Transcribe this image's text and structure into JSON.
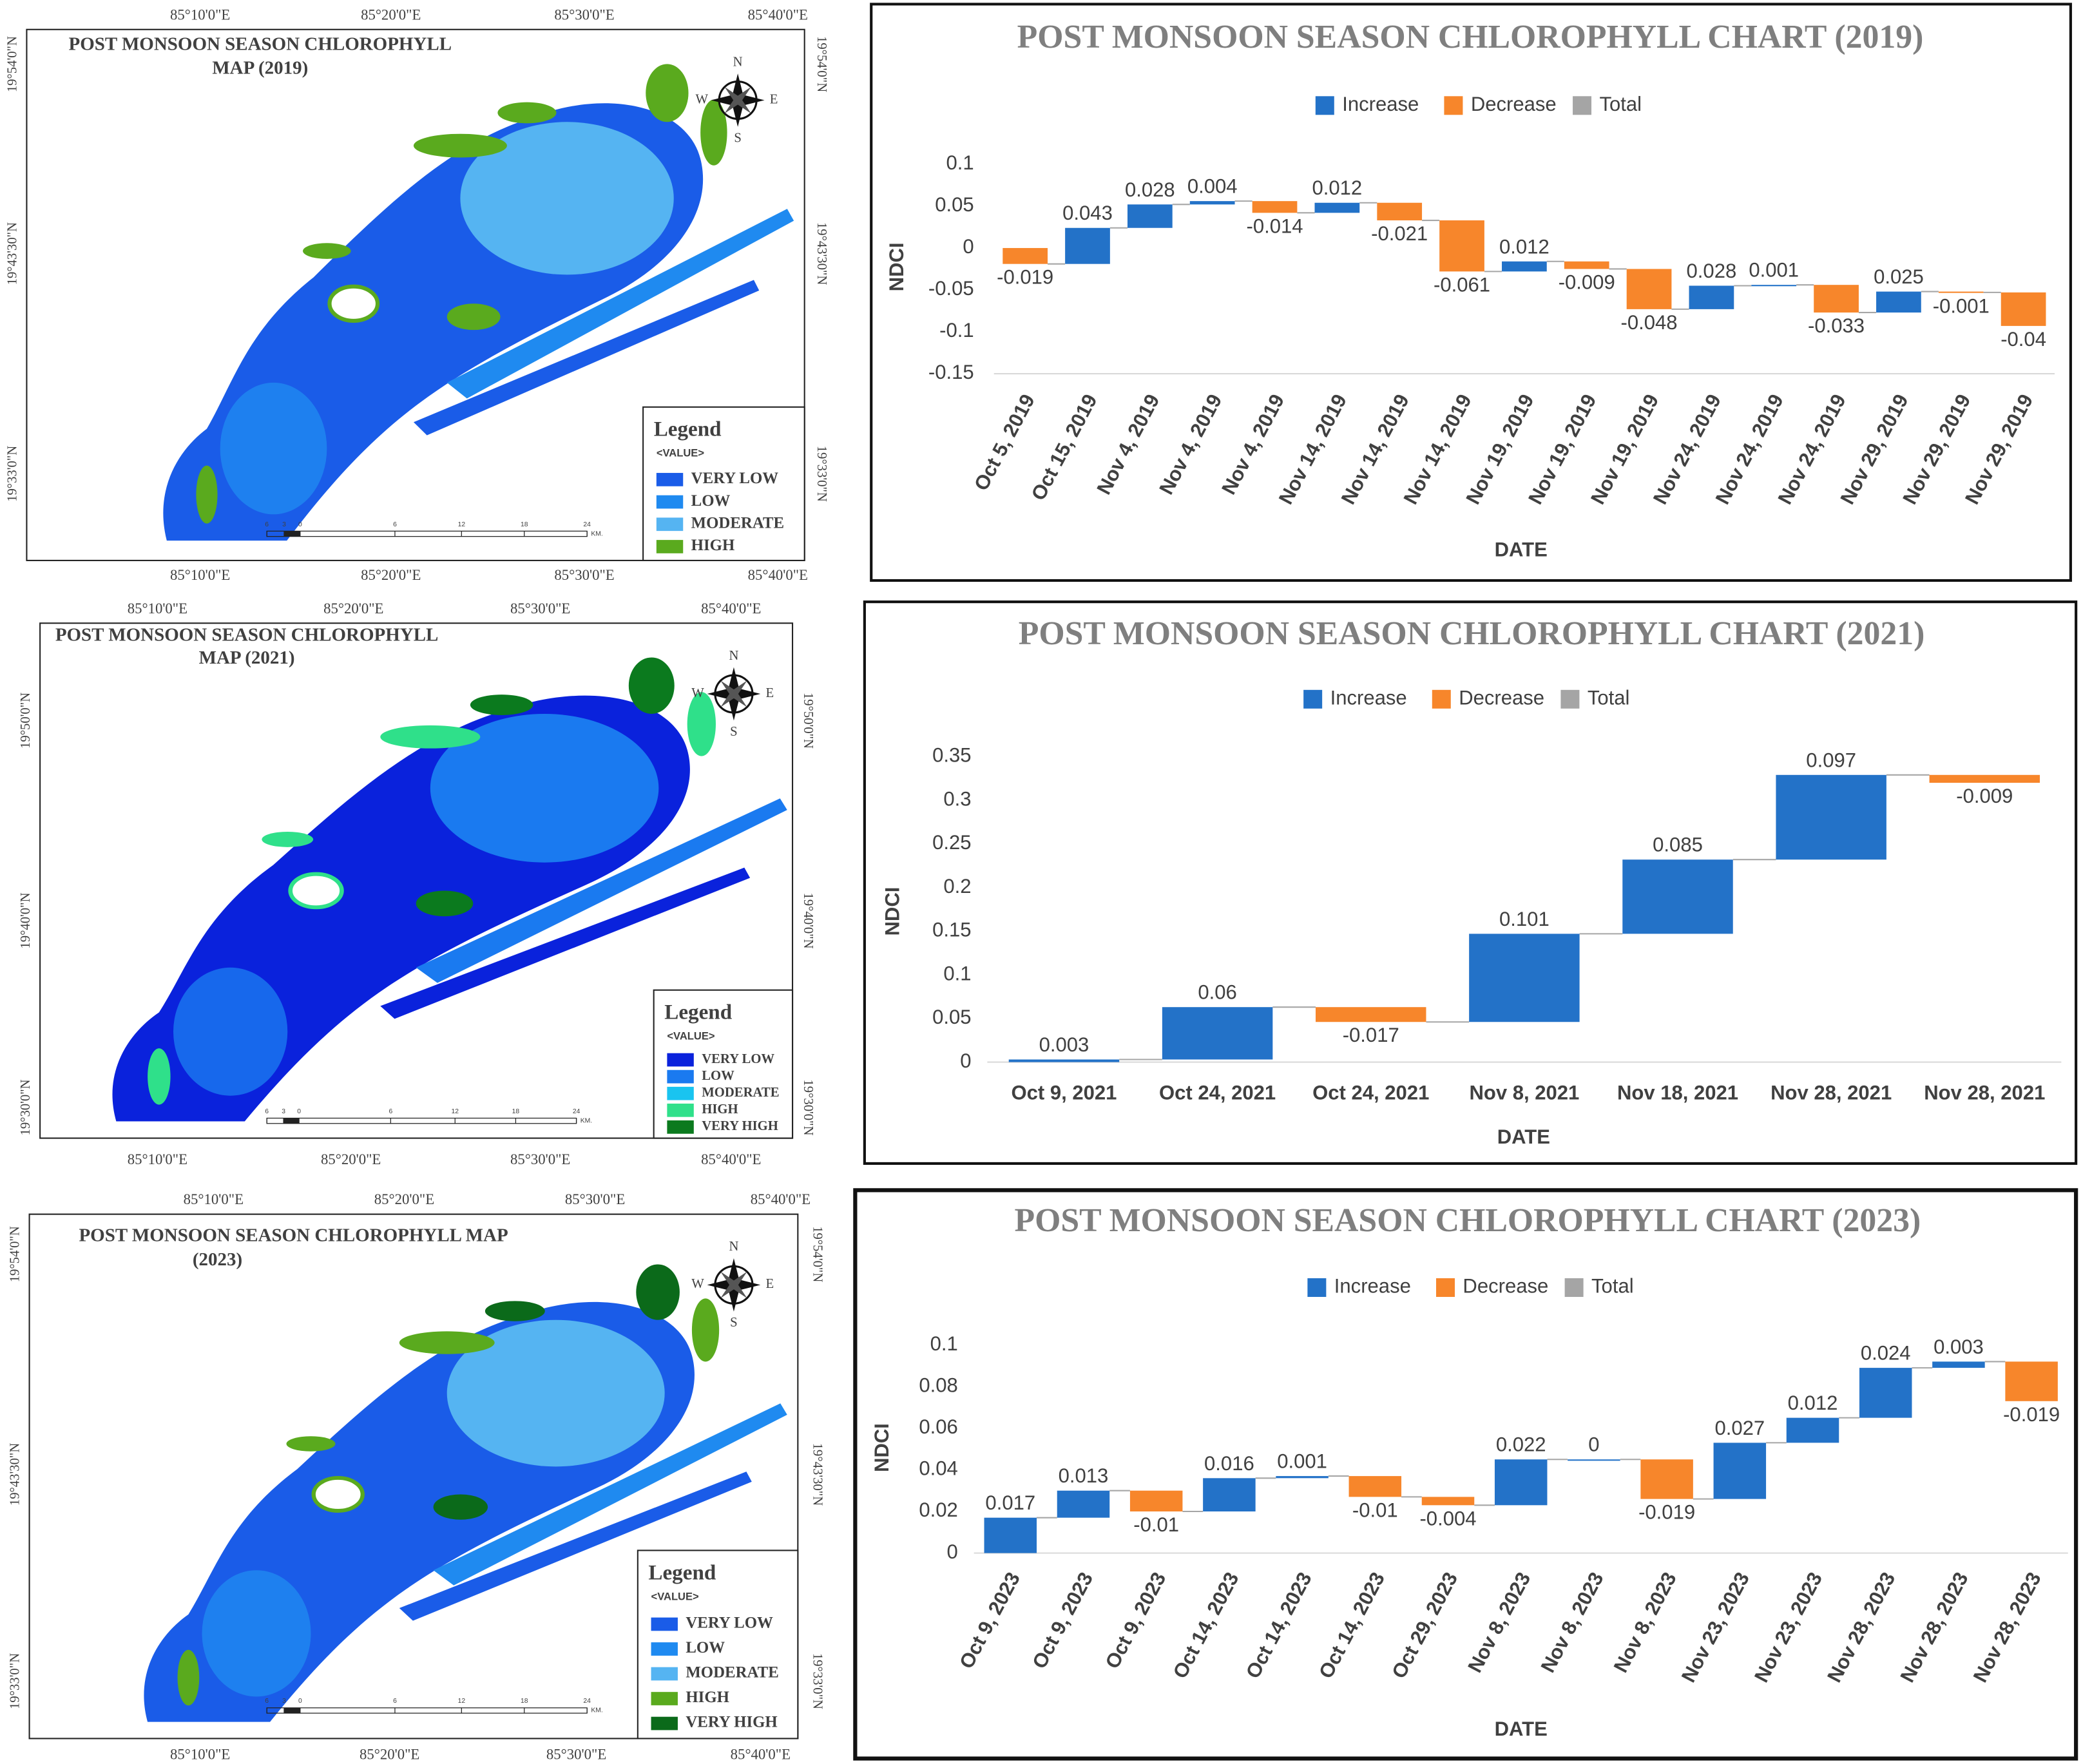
{
  "maps": [
    {
      "title": [
        "POST MONSOON SEASON CHLOROPHYLL",
        "MAP  (2019)"
      ],
      "lon_labels": [
        "85°10'0\"E",
        "85°20'0\"E",
        "85°30'0\"E",
        "85°40'0\"E"
      ],
      "lat_labels": [
        "19°54'0\"N",
        "19°43'30\"N",
        "19°33'0\"N"
      ],
      "compass": [
        "N",
        "E",
        "S",
        "W"
      ],
      "legend_title": "Legend",
      "legend_subtitle": "<VALUE>",
      "legend": [
        {
          "label": "VERY LOW",
          "color": "#1a5ce8"
        },
        {
          "label": "LOW",
          "color": "#1f8af0"
        },
        {
          "label": "MODERATE",
          "color": "#55b4f2"
        },
        {
          "label": "HIGH",
          "color": "#5aaa1e"
        }
      ],
      "scale": [
        "6",
        "3",
        "0",
        "6",
        "12",
        "18",
        "24"
      ],
      "scale_unit": "KM."
    },
    {
      "title": [
        "POST MONSOON SEASON CHLOROPHYLL",
        "MAP (2021)"
      ],
      "lon_labels": [
        "85°10'0\"E",
        "85°20'0\"E",
        "85°30'0\"E",
        "85°40'0\"E"
      ],
      "lat_labels": [
        "19°50'0\"N",
        "19°40'0\"N",
        "19°30'0\"N"
      ],
      "compass": [
        "N",
        "E",
        "S",
        "W"
      ],
      "legend_title": "Legend",
      "legend_subtitle": "<VALUE>",
      "legend": [
        {
          "label": "VERY LOW",
          "color": "#0a22dc"
        },
        {
          "label": "LOW",
          "color": "#1a7af0"
        },
        {
          "label": "MODERATE",
          "color": "#19c4f0"
        },
        {
          "label": "HIGH",
          "color": "#2fe08a"
        },
        {
          "label": "VERY HIGH",
          "color": "#0b7a1e"
        }
      ],
      "scale": [
        "6",
        "3",
        "0",
        "6",
        "12",
        "18",
        "24"
      ],
      "scale_unit": "KM."
    },
    {
      "title": [
        "POST MONSOON SEASON CHLOROPHYLL MAP",
        "(2023)"
      ],
      "lon_labels": [
        "85°10'0\"E",
        "85°20'0\"E",
        "85°30'0\"E",
        "85°40'0\"E"
      ],
      "lat_labels": [
        "19°54'0\"N",
        "19°43'30\"N",
        "19°33'0\"N"
      ],
      "compass": [
        "N",
        "E",
        "S",
        "W"
      ],
      "legend_title": "Legend",
      "legend_subtitle": "<VALUE>",
      "legend": [
        {
          "label": "VERY LOW",
          "color": "#1a5ce8"
        },
        {
          "label": "LOW",
          "color": "#1f8af0"
        },
        {
          "label": "MODERATE",
          "color": "#55b4f2"
        },
        {
          "label": "HIGH",
          "color": "#5aaa1e"
        },
        {
          "label": "VERY HIGH",
          "color": "#0b6a1a"
        }
      ],
      "scale": [
        "6",
        "3",
        "0",
        "6",
        "12",
        "18",
        "24"
      ],
      "scale_unit": "KM."
    }
  ],
  "chart_data": [
    {
      "type": "waterfall",
      "title": "POST MONSOON SEASON CHLOROPHYLL CHART (2019)",
      "legend": [
        {
          "name": "Increase",
          "color": "#2372c8"
        },
        {
          "name": "Decrease",
          "color": "#f7862b"
        },
        {
          "name": "Total",
          "color": "#a5a5a5"
        }
      ],
      "x_label": "DATE",
      "y_label": "NDCI",
      "categories": [
        "Oct 5, 2019",
        "Oct 15, 2019",
        "Nov 4, 2019",
        "Nov 4, 2019",
        "Nov 4, 2019",
        "Nov 14, 2019",
        "Nov 14, 2019",
        "Nov 14, 2019",
        "Nov 19, 2019",
        "Nov 19, 2019",
        "Nov 19, 2019",
        "Nov 24, 2019",
        "Nov 24, 2019",
        "Nov 24, 2019",
        "Nov 29, 2019",
        "Nov 29, 2019",
        "Nov 29, 2019"
      ],
      "values": [
        -0.019,
        0.043,
        0.028,
        0.004,
        -0.014,
        0.012,
        -0.021,
        -0.061,
        0.012,
        -0.009,
        -0.048,
        0.028,
        0.001,
        -0.033,
        0.025,
        -0.001,
        -0.04
      ],
      "ylim": [
        -0.15,
        0.1
      ],
      "yticks": [
        -0.15,
        -0.1,
        -0.05,
        0,
        0.05,
        0.1
      ],
      "grid": false
    },
    {
      "type": "waterfall",
      "title": "POST MONSOON SEASON CHLOROPHYLL CHART (2021)",
      "legend": [
        {
          "name": "Increase",
          "color": "#2372c8"
        },
        {
          "name": "Decrease",
          "color": "#f7862b"
        },
        {
          "name": "Total",
          "color": "#a5a5a5"
        }
      ],
      "x_label": "DATE",
      "y_label": "NDCI",
      "categories": [
        "Oct 9, 2021",
        "Oct 24, 2021",
        "Oct 24, 2021",
        "Nov 8, 2021",
        "Nov 18, 2021",
        "Nov 28, 2021",
        "Nov 28, 2021"
      ],
      "values": [
        0.003,
        0.06,
        -0.017,
        0.101,
        0.085,
        0.097,
        -0.009
      ],
      "ylim": [
        0,
        0.35
      ],
      "yticks": [
        0,
        0.05,
        0.1,
        0.15,
        0.2,
        0.25,
        0.3,
        0.35
      ],
      "grid": false
    },
    {
      "type": "waterfall",
      "title": "POST MONSOON SEASON CHLOROPHYLL CHART (2023)",
      "legend": [
        {
          "name": "Increase",
          "color": "#2372c8"
        },
        {
          "name": "Decrease",
          "color": "#f7862b"
        },
        {
          "name": "Total",
          "color": "#a5a5a5"
        }
      ],
      "x_label": "DATE",
      "y_label": "NDCI",
      "categories": [
        "Oct 9, 2023",
        "Oct 9, 2023",
        "Oct 9, 2023",
        "Oct 14, 2023",
        "Oct 14, 2023",
        "Oct 14, 2023",
        "Oct 29, 2023",
        "Nov 8, 2023",
        "Nov 8, 2023",
        "Nov 8, 2023",
        "Nov 23, 2023",
        "Nov 23, 2023",
        "Nov 28, 2023",
        "Nov 28, 2023",
        "Nov 28, 2023"
      ],
      "values": [
        0.017,
        0.013,
        -0.01,
        0.016,
        0.001,
        -0.01,
        -0.004,
        0.022,
        0,
        -0.019,
        0.027,
        0.012,
        0.024,
        0.003,
        -0.019
      ],
      "ylim": [
        0,
        0.1
      ],
      "yticks": [
        0,
        0.02,
        0.04,
        0.06,
        0.08,
        0.1
      ],
      "grid": false
    }
  ]
}
